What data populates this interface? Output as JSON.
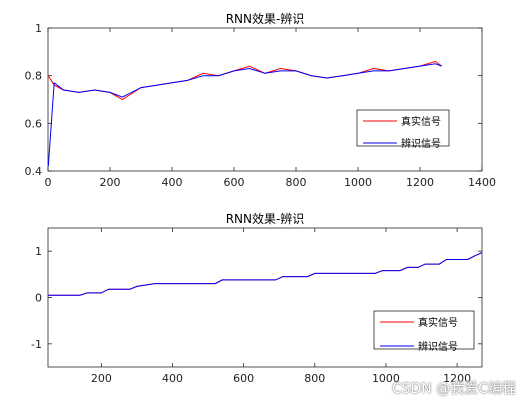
{
  "watermark": "CSDN @我爱C编程",
  "colors": {
    "real": "#ff0000",
    "identified": "#0000ff",
    "axis": "#262626"
  },
  "chart_data": [
    {
      "type": "line",
      "title": "RNN效果-辨识",
      "xlabel": "",
      "ylabel": "",
      "xlim": [
        0,
        1400
      ],
      "ylim": [
        0.4,
        1.0
      ],
      "xticks": [
        0,
        200,
        400,
        600,
        800,
        1000,
        1200,
        1400
      ],
      "yticks": [
        0.4,
        0.6,
        0.8,
        1.0
      ],
      "ytick_labels": [
        "0.4",
        "0.6",
        "0.8",
        "1"
      ],
      "legend_position": "right-middle",
      "series": [
        {
          "name": "真实信号",
          "color": "#ff0000",
          "x": [
            1,
            20,
            50,
            100,
            150,
            200,
            240,
            300,
            350,
            400,
            450,
            500,
            550,
            600,
            650,
            700,
            750,
            800,
            850,
            900,
            950,
            1000,
            1050,
            1100,
            1150,
            1200,
            1250,
            1270
          ],
          "y": [
            0.8,
            0.76,
            0.74,
            0.73,
            0.74,
            0.73,
            0.7,
            0.75,
            0.76,
            0.77,
            0.78,
            0.81,
            0.8,
            0.82,
            0.84,
            0.81,
            0.83,
            0.82,
            0.8,
            0.79,
            0.8,
            0.81,
            0.83,
            0.82,
            0.83,
            0.84,
            0.86,
            0.84
          ]
        },
        {
          "name": "辨识信号",
          "color": "#0000ff",
          "x": [
            1,
            20,
            50,
            100,
            150,
            200,
            240,
            300,
            350,
            400,
            450,
            500,
            550,
            600,
            650,
            700,
            750,
            800,
            850,
            900,
            950,
            1000,
            1050,
            1100,
            1150,
            1200,
            1250,
            1270
          ],
          "y": [
            0.42,
            0.77,
            0.74,
            0.73,
            0.74,
            0.73,
            0.71,
            0.75,
            0.76,
            0.77,
            0.78,
            0.8,
            0.8,
            0.82,
            0.83,
            0.81,
            0.82,
            0.82,
            0.8,
            0.79,
            0.8,
            0.81,
            0.82,
            0.82,
            0.83,
            0.84,
            0.85,
            0.84
          ]
        }
      ]
    },
    {
      "type": "line",
      "title": "RNN效果-辨识",
      "xlabel": "",
      "ylabel": "",
      "xlim": [
        50,
        1270
      ],
      "ylim": [
        -1.5,
        1.5
      ],
      "xticks": [
        200,
        400,
        600,
        800,
        1000,
        1200
      ],
      "yticks": [
        -1,
        0,
        1
      ],
      "ytick_labels": [
        "-1",
        "0",
        "1"
      ],
      "legend_position": "bottom-right",
      "series": [
        {
          "name": "真实信号",
          "color": "#ff0000",
          "x": [
            50,
            140,
            160,
            200,
            220,
            280,
            300,
            350,
            520,
            540,
            690,
            710,
            780,
            800,
            970,
            990,
            1040,
            1060,
            1090,
            1110,
            1150,
            1170,
            1230,
            1250,
            1270
          ],
          "y": [
            0.05,
            0.05,
            0.1,
            0.1,
            0.18,
            0.18,
            0.24,
            0.3,
            0.3,
            0.38,
            0.38,
            0.45,
            0.45,
            0.52,
            0.52,
            0.58,
            0.58,
            0.65,
            0.65,
            0.72,
            0.72,
            0.82,
            0.82,
            0.9,
            0.97
          ]
        },
        {
          "name": "辨识信号",
          "color": "#0000ff",
          "x": [
            50,
            140,
            160,
            200,
            220,
            280,
            300,
            350,
            520,
            540,
            690,
            710,
            780,
            800,
            970,
            990,
            1040,
            1060,
            1090,
            1110,
            1150,
            1170,
            1230,
            1250,
            1270
          ],
          "y": [
            0.05,
            0.05,
            0.1,
            0.1,
            0.18,
            0.18,
            0.24,
            0.3,
            0.3,
            0.38,
            0.38,
            0.45,
            0.45,
            0.52,
            0.52,
            0.58,
            0.58,
            0.65,
            0.65,
            0.72,
            0.72,
            0.82,
            0.82,
            0.9,
            0.97
          ]
        }
      ]
    }
  ]
}
